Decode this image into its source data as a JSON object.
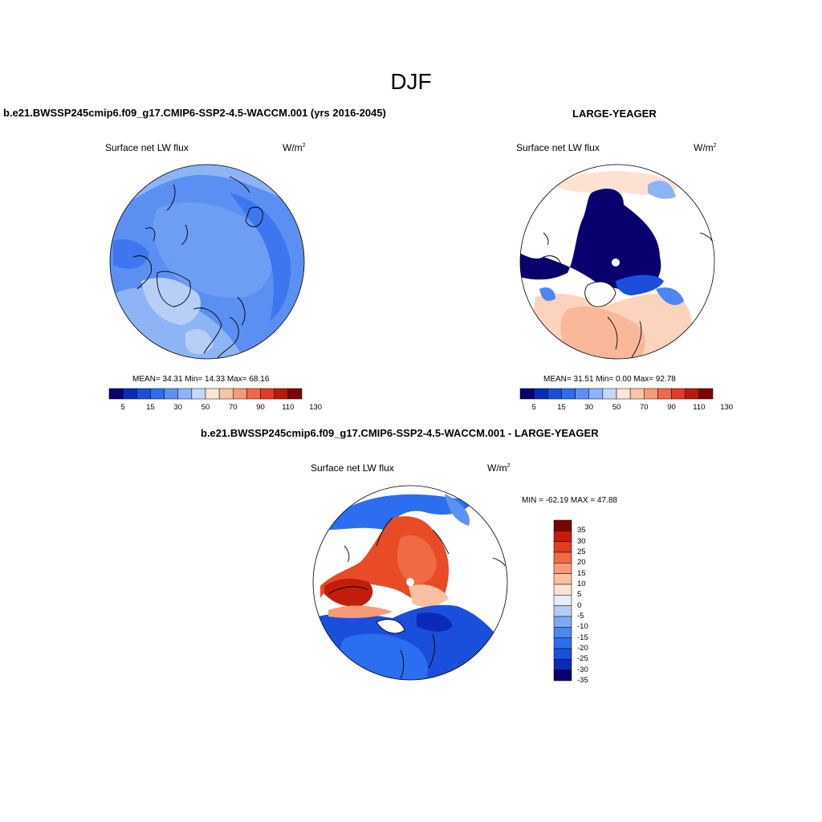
{
  "season": "DJF",
  "colors": {
    "cbar_abs": [
      "#08006e",
      "#0a2ab8",
      "#1a4fdc",
      "#2b6ef0",
      "#5b92f2",
      "#8db4f5",
      "#c4d8f8",
      "#ffe6d5",
      "#fcc4a6",
      "#f79a77",
      "#f06a45",
      "#e03d20",
      "#b81a0b",
      "#7a0403"
    ],
    "cbar_diff": [
      "#08006e",
      "#0a2ab8",
      "#1a4fdc",
      "#2b6ef0",
      "#4d86f2",
      "#7ea8f4",
      "#b3cdf7",
      "#e6eefb",
      "#fde2d4",
      "#fbc0a2",
      "#f79a75",
      "#f06a44",
      "#e03d1f",
      "#c21d0b",
      "#7a0403"
    ]
  },
  "panels": [
    {
      "title": "b.e21.BWSSP245cmip6.f09_g17.CMIP6-SSP2-4.5-WACCM.001 (yrs 2016-2045)",
      "left_label": "Surface net LW flux",
      "units": "W/m",
      "units_sup": "2",
      "stats": "MEAN=  34.31  Min=  14.33  Max=  68.16",
      "ticks": [
        "5",
        "15",
        "30",
        "50",
        "70",
        "90",
        "110",
        "130"
      ]
    },
    {
      "title": "LARGE-YEAGER",
      "left_label": "Surface net LW flux",
      "units": "W/m",
      "units_sup": "2",
      "stats": "MEAN=  31.51  Min=   0.00  Max=  92.78",
      "ticks": [
        "5",
        "15",
        "30",
        "50",
        "70",
        "90",
        "110",
        "130"
      ]
    },
    {
      "title": "b.e21.BWSSP245cmip6.f09_g17.CMIP6-SSP2-4.5-WACCM.001 - LARGE-YEAGER",
      "left_label": "Surface net LW flux",
      "units": "W/m",
      "units_sup": "2",
      "stats": "MIN = -62.19 MAX =  47.88",
      "ticks": [
        "35",
        "30",
        "25",
        "20",
        "15",
        "10",
        "5",
        "0",
        "-5",
        "-10",
        "-15",
        "-20",
        "-25",
        "-30",
        "-35"
      ]
    }
  ]
}
